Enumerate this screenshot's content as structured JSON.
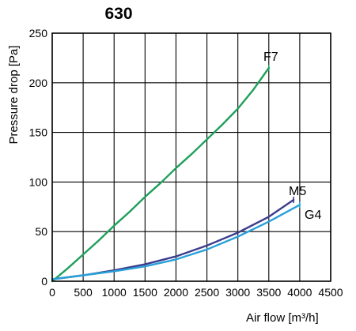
{
  "chart_data": {
    "type": "line",
    "title": "630",
    "xlabel": "Air flow [m³/h]",
    "ylabel": "Pressure drop [Pa]",
    "xlim": [
      0,
      4500
    ],
    "ylim": [
      0,
      250
    ],
    "xticks": [
      "0",
      "500",
      "1000",
      "1500",
      "2000",
      "2500",
      "3000",
      "3500",
      "4000",
      "4500"
    ],
    "yticks": [
      "0",
      "50",
      "100",
      "150",
      "200",
      "250"
    ],
    "grid": true,
    "series": [
      {
        "name": "F7",
        "color": "#1ea05a",
        "x": [
          0,
          250,
          500,
          750,
          1000,
          1250,
          1500,
          1750,
          2000,
          2250,
          2500,
          2750,
          3000,
          3250,
          3500
        ],
        "y": [
          0,
          13,
          27,
          41,
          56,
          70,
          85,
          99,
          114,
          128,
          143,
          158,
          174,
          193,
          215
        ]
      },
      {
        "name": "M5",
        "color": "#3c3c8c",
        "x": [
          0,
          500,
          1000,
          1500,
          2000,
          2500,
          3000,
          3500,
          3900
        ],
        "y": [
          2,
          6,
          11,
          17,
          25,
          36,
          49,
          65,
          82
        ]
      },
      {
        "name": "G4",
        "color": "#2aa0d8",
        "x": [
          0,
          500,
          1000,
          1500,
          2000,
          2500,
          3000,
          3500,
          4000
        ],
        "y": [
          2,
          6,
          10,
          15,
          22,
          32,
          45,
          60,
          77
        ]
      }
    ]
  }
}
